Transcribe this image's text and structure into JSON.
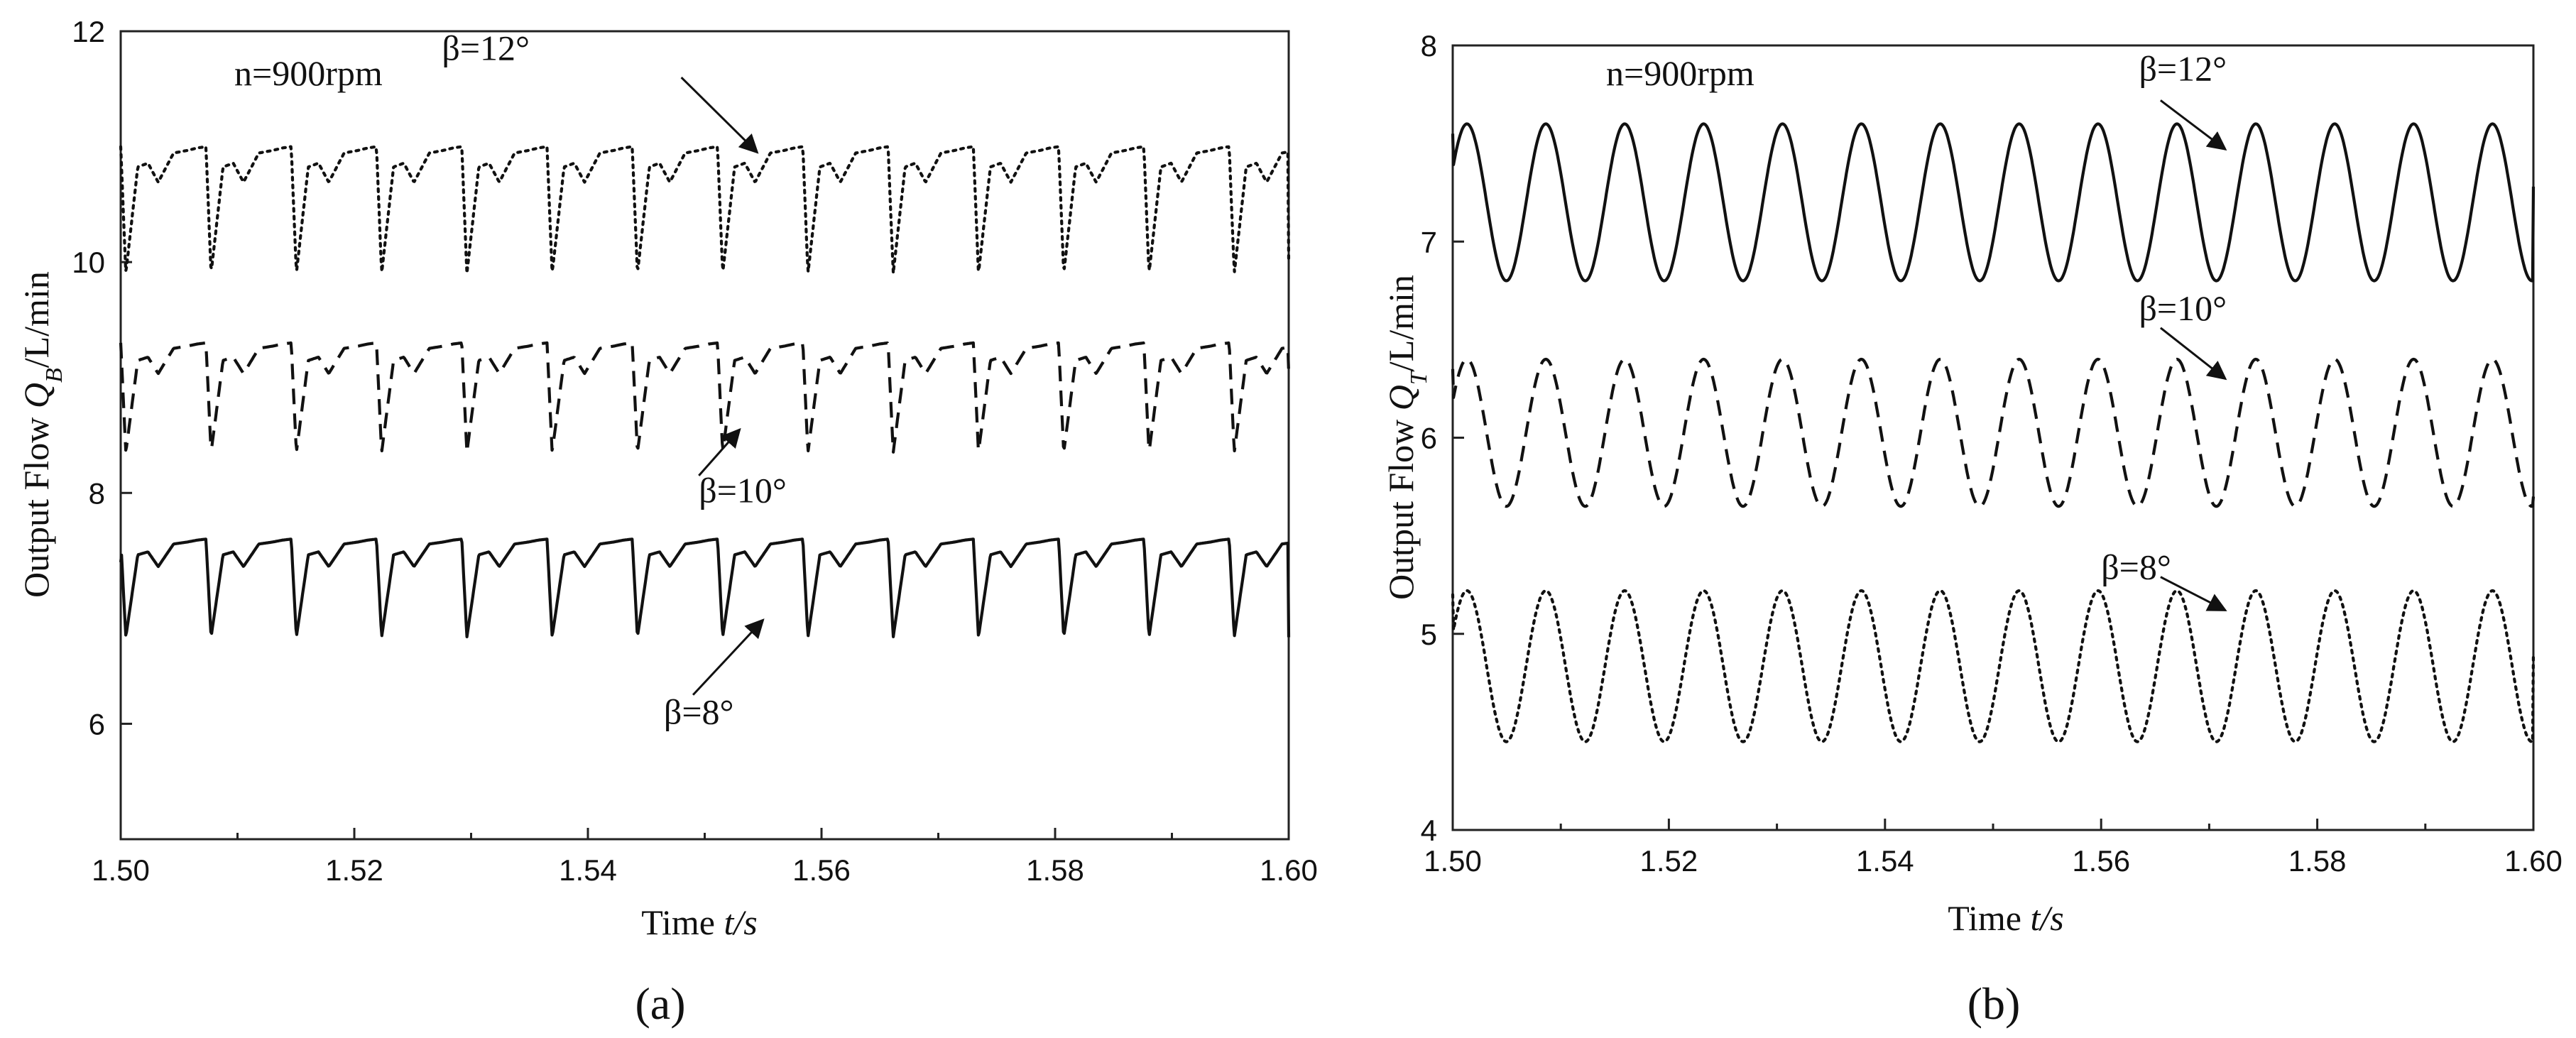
{
  "chart_data": [
    {
      "panel": "a",
      "type": "line",
      "caption": "(a)",
      "ylabel": "Output Flow Q_B/L/min",
      "ylabel_main": "Output Flow ",
      "ylabel_q": "Q",
      "ylabel_sub": "B",
      "ylabel_unit": "/L/min",
      "xlabel_main": "Time  ",
      "xlabel_var": "t/s",
      "xlim": [
        1.5,
        1.6
      ],
      "ylim": [
        5,
        12
      ],
      "xticks": [
        1.5,
        1.52,
        1.54,
        1.56,
        1.58,
        1.6
      ],
      "xtick_labels": [
        "1.50",
        "1.52",
        "1.54",
        "1.56",
        "1.58",
        "1.60"
      ],
      "yticks": [
        6,
        8,
        10,
        12
      ],
      "ytick_labels": [
        "6",
        "8",
        "10",
        "12"
      ],
      "speed_label": "n=900rpm",
      "period": 0.0073,
      "series": [
        {
          "name": "β=12°",
          "label": "β=12°",
          "style": "dotted",
          "shape": "sawtooth",
          "min": 9.9,
          "max": 11.0,
          "start": 11.0,
          "end": 10.0
        },
        {
          "name": "β=10°",
          "label": "β=10°",
          "style": "dashed",
          "shape": "sawtooth",
          "min": 8.35,
          "max": 9.3,
          "start": 9.3,
          "end": 9.05
        },
        {
          "name": "β=8°",
          "label": "β=8°",
          "style": "solid",
          "shape": "sawtooth",
          "min": 6.75,
          "max": 7.6,
          "start": 7.4,
          "end": 6.75
        }
      ],
      "annotations": [
        {
          "series": "β=12°",
          "text": "β=12°",
          "text_x": 1.5275,
          "text_y": 11.75,
          "arrow_from_x": 1.548,
          "arrow_from_y": 11.6,
          "arrow_to_x": 1.5545,
          "arrow_to_y": 10.95
        },
        {
          "series": "β=10°",
          "text": "β=10°",
          "text_x": 1.5495,
          "text_y": 7.92,
          "arrow_from_x": 1.5495,
          "arrow_from_y": 8.15,
          "arrow_to_x": 1.553,
          "arrow_to_y": 8.55
        },
        {
          "series": "β=8°",
          "text": "β=8°",
          "text_x": 1.5465,
          "text_y": 6.0,
          "arrow_from_x": 1.549,
          "arrow_from_y": 6.25,
          "arrow_to_x": 1.555,
          "arrow_to_y": 6.9
        }
      ]
    },
    {
      "panel": "b",
      "type": "line",
      "caption": "(b)",
      "ylabel": "Output Flow Q_T/L/min",
      "ylabel_main": "Output Flow ",
      "ylabel_q": "Q",
      "ylabel_sub": "T",
      "ylabel_unit": "/L/min",
      "xlabel_main": "Time  ",
      "xlabel_var": "t/s",
      "xlim": [
        1.5,
        1.6
      ],
      "ylim": [
        4,
        8
      ],
      "xticks": [
        1.5,
        1.52,
        1.54,
        1.56,
        1.58,
        1.6
      ],
      "xtick_labels": [
        "1.50",
        "1.52",
        "1.54",
        "1.56",
        "1.58",
        "1.60"
      ],
      "yticks": [
        4,
        5,
        6,
        7,
        8
      ],
      "ytick_labels": [
        "4",
        "5",
        "6",
        "7",
        "8"
      ],
      "speed_label": "n=900rpm",
      "period": 0.0073,
      "series": [
        {
          "name": "β=12°",
          "label": "β=12°",
          "style": "solid",
          "shape": "sine",
          "min": 6.8,
          "max": 7.6,
          "start": 7.55,
          "end": 7.28
        },
        {
          "name": "β=10°",
          "label": "β=10°",
          "style": "dashed",
          "shape": "sine",
          "min": 5.65,
          "max": 6.4,
          "start": 6.35,
          "end": 5.7
        },
        {
          "name": "β=8°",
          "label": "β=8°",
          "style": "dotted",
          "shape": "sine",
          "min": 4.45,
          "max": 5.22,
          "start": 5.2,
          "end": 4.9
        }
      ],
      "annotations": [
        {
          "series": "β=12°",
          "text": "β=12°",
          "text_x": 1.5635,
          "text_y": 7.82,
          "arrow_from_x": 1.5655,
          "arrow_from_y": 7.72,
          "arrow_to_x": 1.5715,
          "arrow_to_y": 7.47
        },
        {
          "series": "β=10°",
          "text": "β=10°",
          "text_x": 1.5635,
          "text_y": 6.6,
          "arrow_from_x": 1.5655,
          "arrow_from_y": 6.56,
          "arrow_to_x": 1.5715,
          "arrow_to_y": 6.3
        },
        {
          "series": "β=8°",
          "text": "β=8°",
          "text_x": 1.56,
          "text_y": 5.28,
          "arrow_from_x": 1.5655,
          "arrow_from_y": 5.29,
          "arrow_to_x": 1.5715,
          "arrow_to_y": 5.12
        }
      ]
    }
  ]
}
